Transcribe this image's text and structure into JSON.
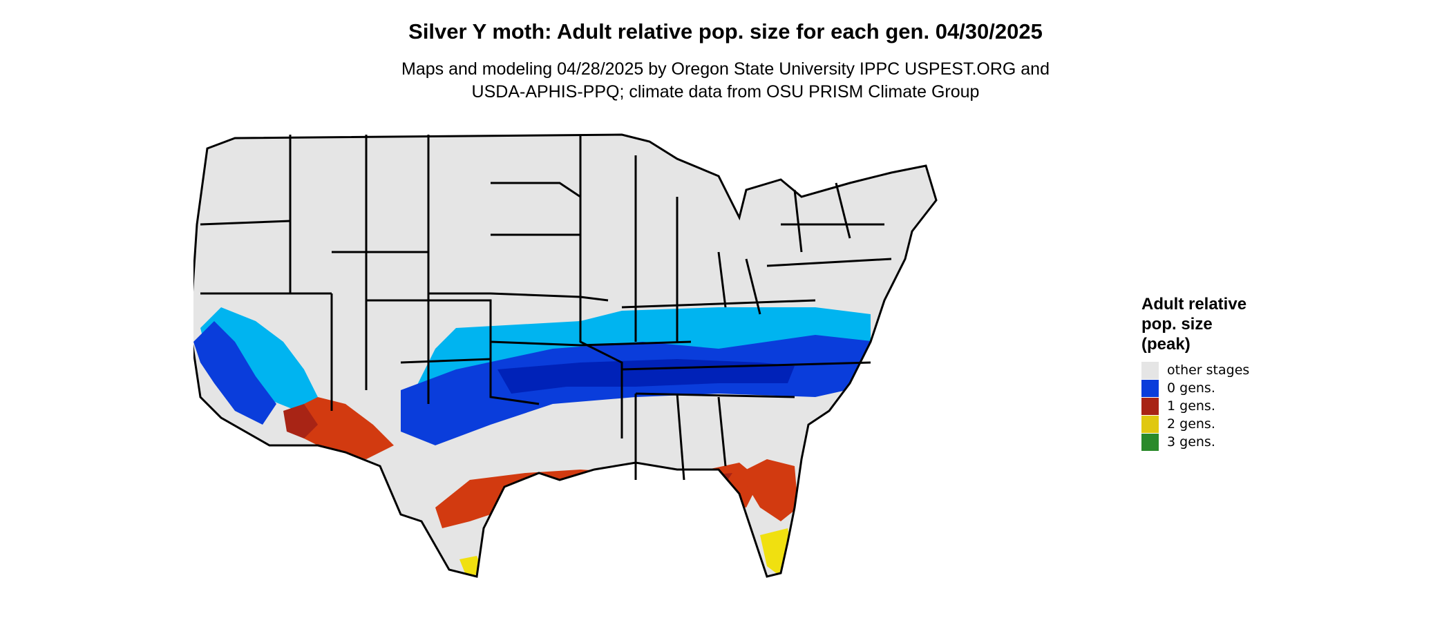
{
  "title": "Silver Y moth: Adult relative pop. size for each gen. 04/30/2025",
  "subtitle": [
    "Maps and modeling 04/28/2025 by Oregon State University IPPC USPEST.ORG and",
    "USDA-APHIS-PPQ; climate data from OSU PRISM Climate Group"
  ],
  "legend": {
    "title": [
      "Adult relative",
      "pop. size",
      "(peak)"
    ],
    "items": [
      {
        "label": "other stages",
        "color": "#e5e5e5"
      },
      {
        "label": "0 gens.",
        "color": "#0a3ddb"
      },
      {
        "label": "1 gens.",
        "color": "#a82415"
      },
      {
        "label": "2 gens.",
        "color": "#e0c810"
      },
      {
        "label": "3 gens.",
        "color": "#2a8a2a"
      }
    ]
  },
  "map": {
    "region": "contiguous-united-states",
    "base_color": "#e5e5e5",
    "border_color": "#000000",
    "zones": [
      {
        "name": "light-blue-band",
        "color": "#00b4f0"
      },
      {
        "name": "blue-band",
        "color": "#0a3ddb"
      },
      {
        "name": "dark-blue-band",
        "color": "#0022b8"
      },
      {
        "name": "red-band",
        "color": "#d23a10"
      },
      {
        "name": "dark-red-band",
        "color": "#a82415"
      },
      {
        "name": "yellow-band",
        "color": "#f0e010"
      }
    ]
  }
}
